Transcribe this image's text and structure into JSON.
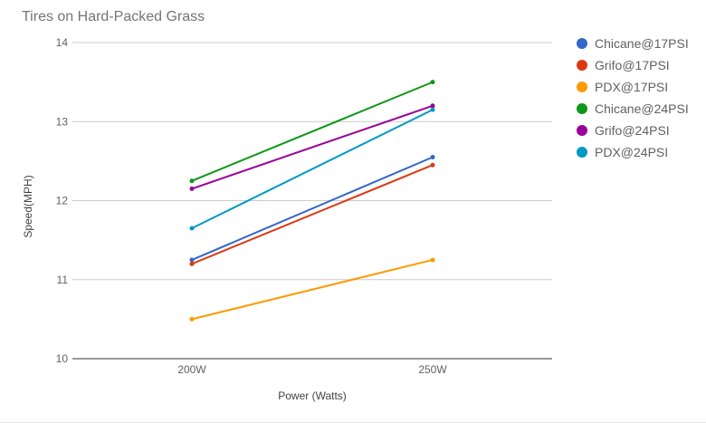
{
  "chart_data": {
    "type": "line",
    "title": "Tires on Hard-Packed Grass",
    "xlabel": "Power (Watts)",
    "ylabel": "Speed(MPH)",
    "categories": [
      "200W",
      "250W"
    ],
    "ylim": [
      10,
      14
    ],
    "yticks": [
      10,
      11,
      12,
      13,
      14
    ],
    "grid": true,
    "legend_position": "right",
    "series": [
      {
        "name": "Chicane@17PSI",
        "color": "#3366cc",
        "values": [
          11.25,
          12.55
        ]
      },
      {
        "name": "Grifo@17PSI",
        "color": "#dc3912",
        "values": [
          11.2,
          12.45
        ]
      },
      {
        "name": "PDX@17PSI",
        "color": "#ff9900",
        "values": [
          10.5,
          11.25
        ]
      },
      {
        "name": "Chicane@24PSI",
        "color": "#109618",
        "values": [
          12.25,
          13.5
        ]
      },
      {
        "name": "Grifo@24PSI",
        "color": "#990099",
        "values": [
          12.15,
          13.2
        ]
      },
      {
        "name": "PDX@24PSI",
        "color": "#0099c6",
        "values": [
          11.65,
          13.15
        ]
      }
    ]
  }
}
